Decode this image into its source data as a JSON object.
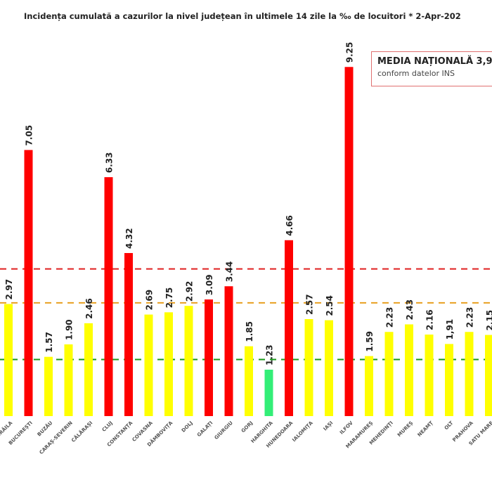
{
  "chart_data": {
    "type": "bar",
    "title": "Incidența cumulată a cazurilor la nivel județean în ultimele 14 zile la ‰ de locuitori *  2-Apr-202",
    "categories": [
      "BRĂILA",
      "BUCUREȘTI",
      "BUZĂU",
      "CARAȘ-SEVERIN",
      "CĂLĂRAȘI",
      "CLUJ",
      "CONSTANȚA",
      "COVASNA",
      "DÂMBOVIȚA",
      "DOLJ",
      "GALAȚI",
      "GIURGIU",
      "GORJ",
      "HARGHITA",
      "HUNEDOARA",
      "IALOMIȚA",
      "IAȘI",
      "ILFOV",
      "MARAMUREȘ",
      "MEHEDINȚI",
      "MUREȘ",
      "NEAMȚ",
      "OLT",
      "PRAHOVA",
      "SATU MARE"
    ],
    "values": [
      2.97,
      7.05,
      1.57,
      1.9,
      2.46,
      6.33,
      4.32,
      2.69,
      2.75,
      2.92,
      3.09,
      3.44,
      1.85,
      1.23,
      4.66,
      2.57,
      2.54,
      9.25,
      1.59,
      2.23,
      2.43,
      2.16,
      1.91,
      2.23,
      2.15
    ],
    "value_labels": [
      "2.97",
      "7.05",
      "1.57",
      "1.90",
      "2.46",
      "6.33",
      "4.32",
      "2.69",
      "2.75",
      "2.92",
      "3.09",
      "3.44",
      "1.85",
      "1.23",
      "4.66",
      "2.57",
      "2.54",
      "9.25",
      "1.59",
      "2.23",
      "2.43",
      "2.16",
      "1,91",
      "2.23",
      "2.15"
    ],
    "thresholds": [
      {
        "value": 1.5,
        "color": "#1a9a1a"
      },
      {
        "value": 3.0,
        "color": "#e8a020"
      },
      {
        "value": 3.9,
        "color": "#e02020"
      }
    ],
    "colors": {
      "low": "#33ee77",
      "mid": "#ffff00",
      "high": "#ff0000"
    },
    "grid": false,
    "xlabel": "",
    "ylabel": ""
  },
  "media": {
    "title": "MEDIA NAȚIONALĂ  3,9",
    "subtitle": "conform datelor INS"
  }
}
